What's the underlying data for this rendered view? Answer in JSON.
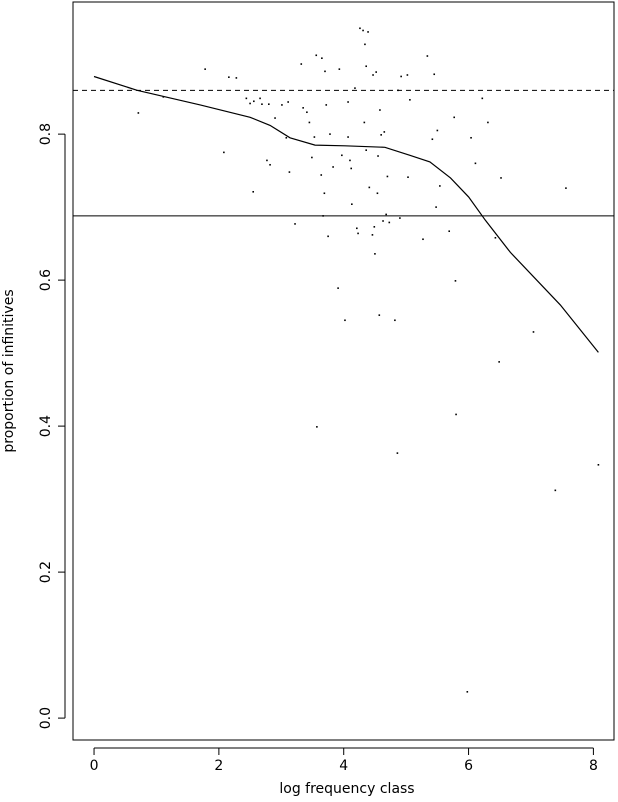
{
  "chart_data": {
    "type": "scatter",
    "x_label": "log frequency class",
    "y_label": "proportion of infinitives",
    "xlim": [
      -0.337,
      8.33
    ],
    "ylim": [
      -0.03,
      0.981
    ],
    "xticks": [
      0,
      2,
      4,
      6,
      8
    ],
    "yticks": [
      {
        "value": 0,
        "label": "0.0"
      },
      0.2,
      0.4,
      0.6,
      0.8
    ],
    "color": "#000000",
    "x": [
      0.71,
      1.11,
      1.78,
      2.16,
      2.28,
      2.08,
      2.44,
      2.5,
      2.56,
      2.66,
      2.69,
      2.8,
      2.55,
      2.77,
      2.82,
      2.9,
      3.01,
      3.11,
      3.08,
      3.13,
      3.22,
      3.32,
      3.35,
      3.41,
      3.45,
      3.53,
      3.49,
      3.56,
      3.57,
      3.65,
      3.7,
      3.72,
      3.64,
      3.69,
      3.67,
      3.75,
      3.78,
      3.83,
      3.93,
      3.91,
      3.97,
      4.02,
      4.07,
      4.07,
      4.1,
      4.12,
      4.13,
      4.18,
      4.21,
      4.23,
      4.26,
      4.31,
      4.34,
      4.36,
      4.33,
      4.36,
      4.39,
      4.41,
      4.46,
      4.47,
      4.49,
      4.5,
      4.52,
      4.55,
      4.54,
      4.57,
      4.58,
      4.6,
      4.63,
      4.65,
      4.68,
      4.7,
      4.73,
      4.82,
      4.86,
      4.87,
      4.9,
      4.92,
      5.02,
      5.03,
      5.06,
      5.27,
      5.34,
      5.42,
      5.45,
      5.48,
      5.5,
      5.54,
      5.69,
      5.79,
      5.77,
      5.8,
      5.98,
      6.04,
      6.11,
      6.22,
      6.31,
      6.43,
      6.49,
      6.52,
      7.04,
      7.39,
      7.56,
      8.08
    ],
    "values": [
      0.829,
      0.851,
      0.889,
      0.878,
      0.877,
      0.775,
      0.849,
      0.842,
      0.845,
      0.849,
      0.841,
      0.841,
      0.721,
      0.764,
      0.758,
      0.822,
      0.84,
      0.844,
      0.795,
      0.748,
      0.677,
      0.896,
      0.836,
      0.83,
      0.816,
      0.796,
      0.768,
      0.908,
      0.399,
      0.904,
      0.886,
      0.84,
      0.744,
      0.719,
      0.688,
      0.66,
      0.8,
      0.755,
      0.889,
      0.589,
      0.771,
      0.545,
      0.844,
      0.796,
      0.764,
      0.753,
      0.704,
      0.863,
      0.671,
      0.664,
      0.945,
      0.942,
      0.923,
      0.893,
      0.816,
      0.778,
      0.94,
      0.727,
      0.662,
      0.881,
      0.673,
      0.636,
      0.885,
      0.77,
      0.719,
      0.552,
      0.833,
      0.799,
      0.681,
      0.803,
      0.69,
      0.742,
      0.679,
      0.545,
      0.363,
      0.86,
      0.685,
      0.879,
      0.881,
      0.741,
      0.847,
      0.656,
      0.907,
      0.793,
      0.882,
      0.7,
      0.805,
      0.729,
      0.667,
      0.599,
      0.823,
      0.416,
      0.036,
      0.795,
      0.76,
      0.849,
      0.816,
      0.658,
      0.488,
      0.74,
      0.529,
      0.312,
      0.726,
      0.347
    ],
    "smoother": {
      "x": [
        0,
        0.69,
        1.7,
        2.5,
        2.82,
        3.14,
        3.54,
        4.02,
        4.66,
        5.06,
        5.38,
        5.71,
        6.0,
        6.27,
        6.67,
        7.47,
        8.08
      ],
      "values": [
        0.879,
        0.86,
        0.84,
        0.823,
        0.812,
        0.795,
        0.785,
        0.784,
        0.782,
        0.771,
        0.762,
        0.74,
        0.714,
        0.682,
        0.638,
        0.566,
        0.501
      ]
    },
    "hlines": [
      {
        "value": 0.86,
        "style": "dashed"
      },
      {
        "value": 0.688,
        "style": "solid"
      }
    ]
  }
}
